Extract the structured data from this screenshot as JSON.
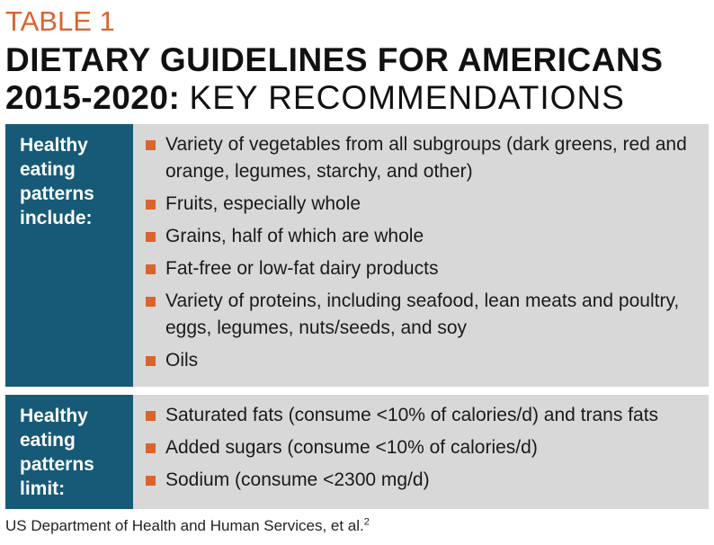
{
  "header": {
    "table_label": "TABLE 1",
    "title_line1": "DIETARY GUIDELINES FOR AMERICANS",
    "title_line2_bold": "2015-2020:",
    "title_line2_rest": "KEY RECOMMENDATIONS"
  },
  "include_section": {
    "label": "Healthy\neating\npatterns\ninclude:",
    "items": [
      "Variety of vegetables from all subgroups (dark greens, red and orange, legumes, starchy, and other)",
      "Fruits, especially whole",
      "Grains, half of which are whole",
      "Fat-free or low-fat dairy products",
      "Variety of proteins, including seafood, lean meats and poultry, eggs, legumes, nuts/seeds, and soy",
      "Oils"
    ]
  },
  "limit_section": {
    "label": "Healthy\neating\npatterns\nlimit:",
    "items": [
      "Saturated fats (consume <10% of calories/d) and trans fats",
      "Added sugars (consume <10% of calories/d)",
      "Sodium (consume <2300 mg/d)"
    ]
  },
  "footnote": {
    "text": "US Department of Health and Human Services, et al.",
    "ref": "2"
  },
  "colors": {
    "accent_orange": "#d9642e",
    "sidebar_blue": "#175a78",
    "content_gray": "#d8d8d8"
  }
}
